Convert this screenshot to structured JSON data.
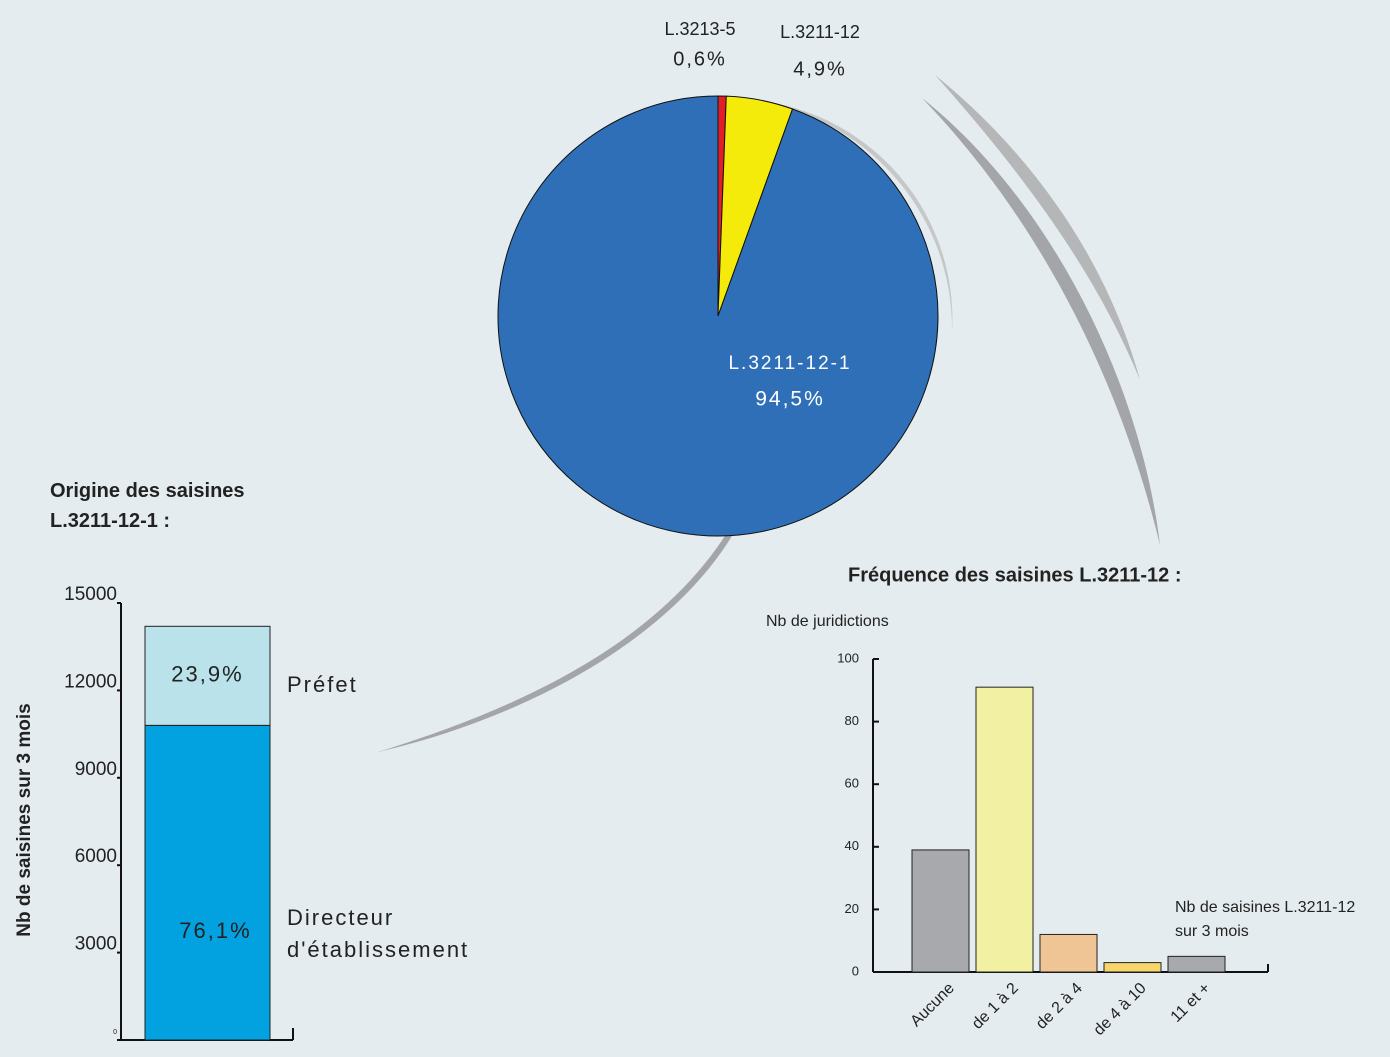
{
  "chart_data": [
    {
      "type": "pie",
      "categories": [
        "L.3213-5",
        "L.3211-12",
        "L.3211-12-1"
      ],
      "values": [
        0.6,
        4.9,
        94.5
      ],
      "value_labels": [
        "0,6%",
        "4,9%",
        "94,5%"
      ],
      "colors": [
        "#e31f26",
        "#f5eb0a",
        "#2e6fb7"
      ]
    },
    {
      "type": "bar",
      "stacked": true,
      "title": "Origine des saisines L.3211-12-1 :",
      "y_label": "Nb de saisines sur 3 mois",
      "series": [
        {
          "name": "Directeur d'établissement",
          "color": "#02a1e0",
          "values": [
            10800
          ],
          "value_labels": [
            "76,1%"
          ]
        },
        {
          "name": "Préfet",
          "color": "#b9e2ea",
          "values": [
            3400
          ],
          "value_labels": [
            "23,9%"
          ]
        }
      ],
      "ylim": [
        0,
        15000
      ],
      "yticks": [
        0,
        3000,
        6000,
        9000,
        12000,
        15000
      ]
    },
    {
      "type": "bar",
      "title": "Fréquence des saisines L.3211-12 :",
      "y_label": "Nb de juridictions",
      "x_label": "Nb de saisines L.3211-12 sur 3 mois",
      "categories": [
        "Aucune",
        "de 1 à 2",
        "de 2 à 4",
        "de 4 à 10",
        "11 et +"
      ],
      "values": [
        39,
        91,
        12,
        3,
        5
      ],
      "colors": [
        "#a7a9ac",
        "#f2f0a3",
        "#f0c595",
        "#f7d56a",
        "#a7a9ac"
      ],
      "ylim": [
        0,
        100
      ],
      "yticks": [
        0,
        20,
        40,
        60,
        80,
        100
      ]
    }
  ]
}
